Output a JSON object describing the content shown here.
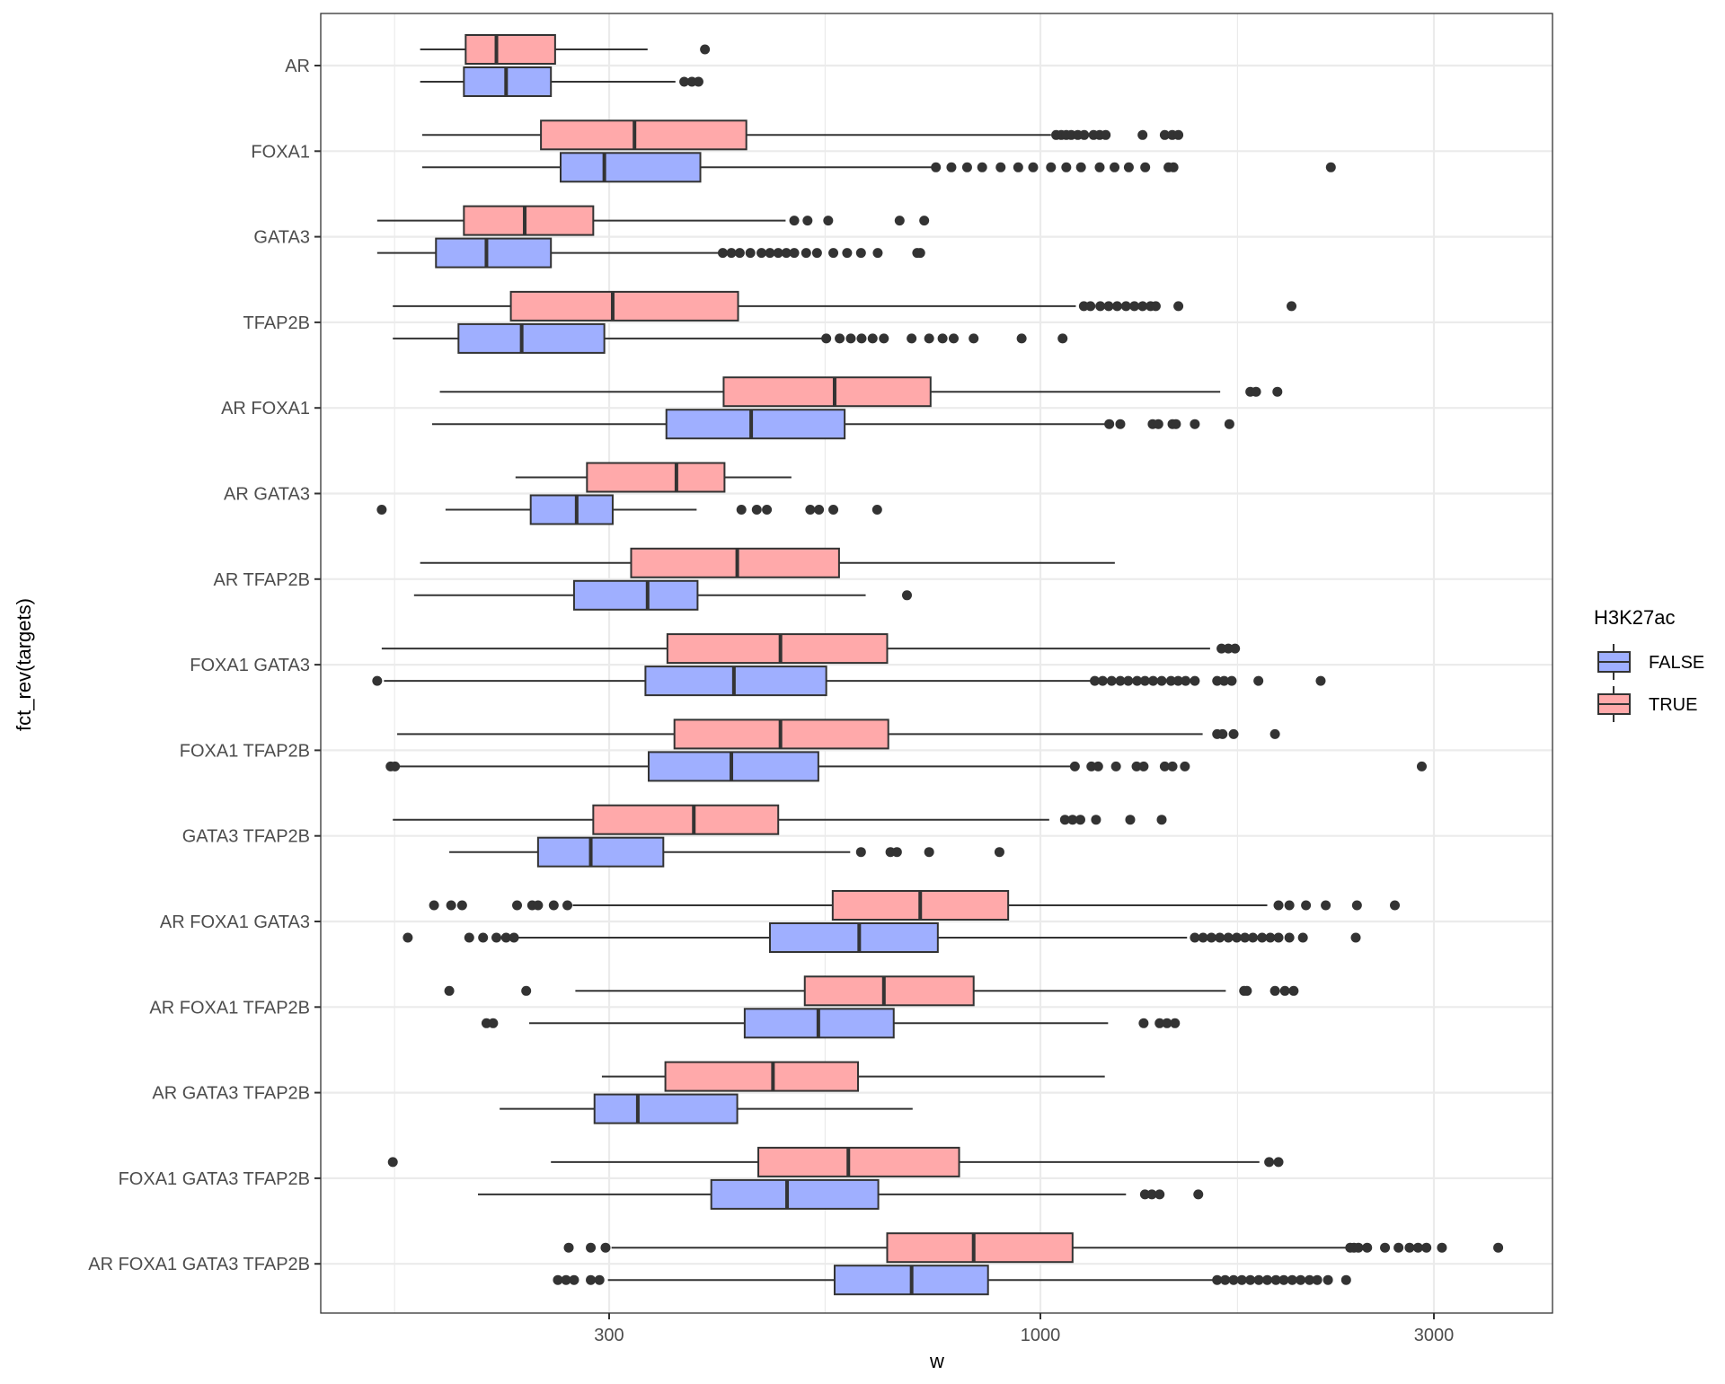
{
  "chart_data": {
    "type": "boxplot",
    "orientation": "horizontal",
    "xlabel": "w",
    "ylabel": "fct_rev(targets)",
    "x_scale": "log10",
    "xlim": [
      150,
      4200
    ],
    "x_ticks": [
      300,
      1000,
      3000
    ],
    "x_tick_labels": [
      "300",
      "1000",
      "3000"
    ],
    "grid": true,
    "legend": {
      "title": "H3K27ac",
      "position": "right",
      "entries": [
        "FALSE",
        "TRUE"
      ]
    },
    "colors": {
      "FALSE": "#9FAFFF",
      "TRUE": "#FFA9AA",
      "outline": "#333333"
    },
    "categories": [
      "AR",
      "FOXA1",
      "GATA3",
      "TFAP2B",
      "AR FOXA1",
      "AR GATA3",
      "AR TFAP2B",
      "FOXA1 GATA3",
      "FOXA1 TFAP2B",
      "GATA3 TFAP2B",
      "AR FOXA1 GATA3",
      "AR FOXA1 TFAP2B",
      "AR GATA3 TFAP2B",
      "FOXA1 GATA3 TFAP2B",
      "AR FOXA1 GATA3 TFAP2B"
    ],
    "series": [
      {
        "name": "TRUE",
        "boxes": [
          {
            "min": 177,
            "q1": 201,
            "median": 219,
            "q3": 258,
            "max": 334,
            "outliers": [
              392
            ]
          },
          {
            "min": 178,
            "q1": 248,
            "median": 322,
            "q3": 440,
            "max": 1030,
            "outliers": [
              1045,
              1060,
              1075,
              1090,
              1110,
              1130,
              1160,
              1180,
              1200,
              1330,
              1415,
              1445,
              1470
            ]
          },
          {
            "min": 157,
            "q1": 200,
            "median": 237,
            "q3": 287,
            "max": 491,
            "outliers": [
              503,
              522,
              553,
              675,
              723
            ]
          },
          {
            "min": 164,
            "q1": 228,
            "median": 303,
            "q3": 430,
            "max": 1104,
            "outliers": [
              1129,
              1150,
              1182,
              1210,
              1239,
              1270,
              1300,
              1330,
              1360,
              1380,
              1470,
              2016
            ]
          },
          {
            "min": 187,
            "q1": 413,
            "median": 563,
            "q3": 736,
            "max": 1652,
            "outliers": [
              1797,
              1826,
              1938
            ]
          },
          {
            "min": 231,
            "q1": 282,
            "median": 362,
            "q3": 414,
            "max": 499,
            "outliers": []
          },
          {
            "min": 177,
            "q1": 319,
            "median": 429,
            "q3": 570,
            "max": 1231,
            "outliers": []
          },
          {
            "min": 159,
            "q1": 353,
            "median": 484,
            "q3": 652,
            "max": 1606,
            "outliers": [
              1658,
              1690,
              1722
            ]
          },
          {
            "min": 166,
            "q1": 360,
            "median": 484,
            "q3": 654,
            "max": 1573,
            "outliers": [
              1638,
              1663,
              1715,
              1925
            ]
          },
          {
            "min": 164,
            "q1": 287,
            "median": 380,
            "q3": 481,
            "max": 1025,
            "outliers": [
              1071,
              1094,
              1118,
              1168,
              1285,
              1403
            ]
          },
          {
            "min": 271,
            "q1": 560,
            "median": 715,
            "q3": 914,
            "max": 1884,
            "outliers": [
              184,
              193,
              199,
              232,
              242,
              246,
              257,
              267,
              1944,
              2004,
              2099,
              2218,
              2420,
              2690
            ]
          },
          {
            "min": 273,
            "q1": 518,
            "median": 646,
            "q3": 830,
            "max": 1678,
            "outliers": [
              192,
              238,
              1766,
              1780,
              1925,
              1979,
              2028
            ]
          },
          {
            "min": 294,
            "q1": 351,
            "median": 474,
            "q3": 601,
            "max": 1197,
            "outliers": []
          },
          {
            "min": 255,
            "q1": 455,
            "median": 585,
            "q3": 797,
            "max": 1843,
            "outliers": [
              164,
              1894,
              1944
            ]
          },
          {
            "min": 302,
            "q1": 652,
            "median": 830,
            "q3": 1094,
            "max": 2355,
            "outliers": [
              268,
              285,
              297,
              2375,
              2400,
              2430,
              2490,
              2617,
              2718,
              2803,
              2870,
              2938,
              3068,
              3590
            ]
          }
        ]
      },
      {
        "name": "FALSE",
        "boxes": [
          {
            "min": 177,
            "q1": 200,
            "median": 225,
            "q3": 255,
            "max": 361,
            "outliers": [
              370,
              378,
              385
            ]
          },
          {
            "min": 178,
            "q1": 262,
            "median": 296,
            "q3": 387,
            "max": 742,
            "outliers": [
              747,
              780,
              815,
              850,
              895,
              940,
              980,
              1030,
              1075,
              1120,
              1180,
              1230,
              1280,
              1340,
              1430,
              1450,
              2250
            ]
          },
          {
            "min": 157,
            "q1": 185,
            "median": 213,
            "q3": 255,
            "max": 409,
            "outliers": [
              412,
              422,
              432,
              445,
              459,
              470,
              481,
              492,
              503,
              520,
              536,
              561,
              583,
              606,
              635,
              709,
              715
            ]
          },
          {
            "min": 164,
            "q1": 197,
            "median": 235,
            "q3": 296,
            "max": 545,
            "outliers": [
              550,
              571,
              589,
              607,
              626,
              646,
              698,
              733,
              761,
              785,
              830,
              949,
              1064
            ]
          },
          {
            "min": 183,
            "q1": 352,
            "median": 446,
            "q3": 579,
            "max": 1200,
            "outliers": [
              1212,
              1250,
              1368,
              1390,
              1446,
              1460,
              1539,
              1695
            ]
          },
          {
            "min": 190,
            "q1": 241,
            "median": 274,
            "q3": 303,
            "max": 383,
            "outliers": [
              159,
              434,
              453,
              466,
              526,
              539,
              561,
              634
            ]
          },
          {
            "min": 174,
            "q1": 272,
            "median": 334,
            "q3": 384,
            "max": 614,
            "outliers": [
              689
            ]
          },
          {
            "min": 160,
            "q1": 332,
            "median": 425,
            "q3": 550,
            "max": 1157,
            "outliers": [
              157,
              1164,
              1190,
              1220,
              1250,
              1278,
              1310,
              1339,
              1370,
              1403,
              1440,
              1469,
              1500,
              1539,
              1638,
              1670,
              1706,
              1838,
              2187
            ]
          },
          {
            "min": 166,
            "q1": 335,
            "median": 422,
            "q3": 538,
            "max": 1094,
            "outliers": [
              163,
              165,
              1101,
              1153,
              1175,
              1235,
              1308,
              1334,
              1415,
              1446,
              1497,
              2900
            ]
          },
          {
            "min": 192,
            "q1": 246,
            "median": 285,
            "q3": 349,
            "max": 588,
            "outliers": [
              606,
              658,
              670,
              733,
              892
            ]
          },
          {
            "min": 233,
            "q1": 470,
            "median": 603,
            "q3": 751,
            "max": 1506,
            "outliers": [
              171,
              203,
              211,
              219,
              225,
              230,
              1539,
              1575,
              1612,
              1650,
              1690,
              1730,
              1770,
              1810,
              1857,
              1900,
              1944,
              2004,
              2081,
              2412
            ]
          },
          {
            "min": 240,
            "q1": 438,
            "median": 538,
            "q3": 664,
            "max": 1208,
            "outliers": [
              213,
              217,
              1334,
              1395,
              1424,
              1456
            ]
          },
          {
            "min": 221,
            "q1": 288,
            "median": 325,
            "q3": 429,
            "max": 700,
            "outliers": []
          },
          {
            "min": 208,
            "q1": 399,
            "median": 493,
            "q3": 636,
            "max": 1270,
            "outliers": [
              1339,
              1365,
              1395,
              1554
            ]
          },
          {
            "min": 299,
            "q1": 563,
            "median": 698,
            "q3": 864,
            "max": 1627,
            "outliers": [
              260,
              266,
              272,
              285,
              292,
              1638,
              1675,
              1715,
              1755,
              1797,
              1840,
              1884,
              1930,
              1973,
              2020,
              2068,
              2120,
              2166,
              2232,
              2348
            ]
          }
        ]
      }
    ]
  }
}
